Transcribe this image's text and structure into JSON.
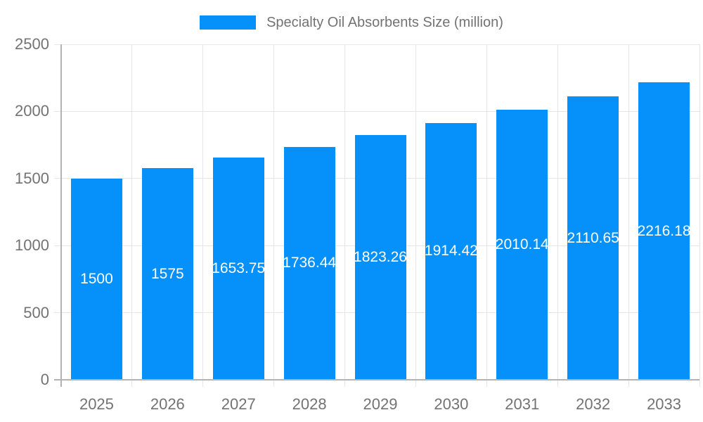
{
  "chart_data": {
    "type": "bar",
    "title": "Specialty Oil Absorbents Size (million)",
    "legend": {
      "label": "Specialty Oil Absorbents Size (million)",
      "position": "top"
    },
    "categories": [
      "2025",
      "2026",
      "2027",
      "2028",
      "2029",
      "2030",
      "2031",
      "2032",
      "2033"
    ],
    "values": [
      1500,
      1575,
      1653.75,
      1736.44,
      1823.26,
      1914.42,
      2010.14,
      2110.65,
      2216.18
    ],
    "value_labels": [
      "1500",
      "1575",
      "1653.75",
      "1736.44",
      "1823.26",
      "1914.42",
      "2010.14",
      "2110.65",
      "2216.18"
    ],
    "xlabel": "",
    "ylabel": "",
    "ylim": [
      0,
      2500
    ],
    "y_ticks": [
      0,
      500,
      1000,
      1500,
      2000,
      2500
    ],
    "grid": true,
    "colors": {
      "bar": "#0690fa",
      "grid_light": "#e6e6e6",
      "grid_zero": "#b3b3b3",
      "axis_text": "#737373",
      "value_label": "#ffffff",
      "background": "#ffffff"
    }
  }
}
